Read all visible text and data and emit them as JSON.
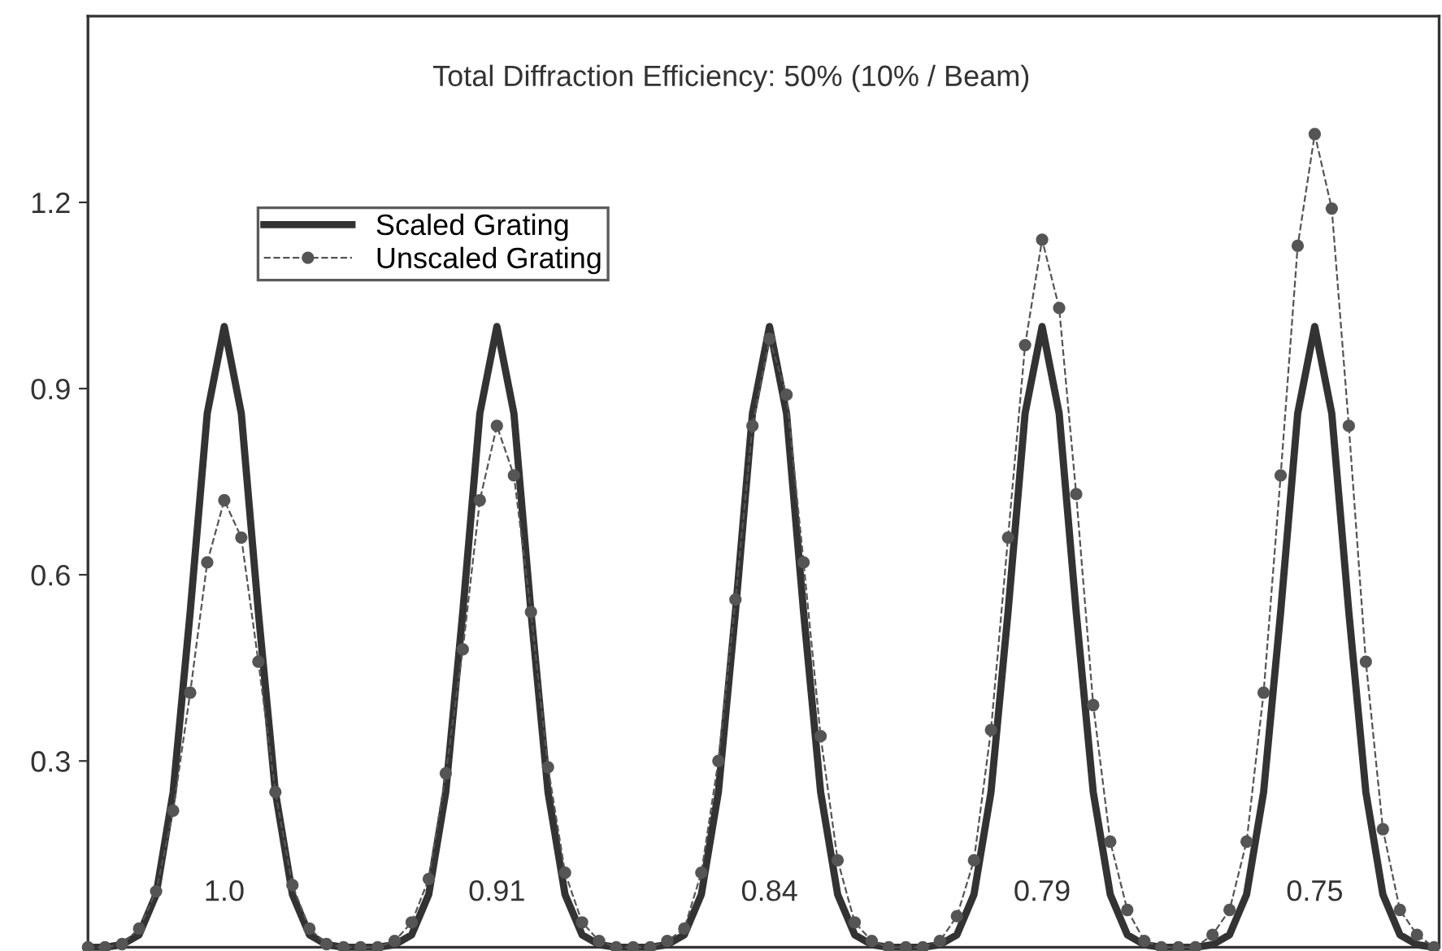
{
  "chart_data": {
    "type": "line",
    "title": "Total Diffraction Efficiency: 50% (10% / Beam)",
    "categories": [
      null,
      null,
      null,
      null,
      null,
      null,
      null,
      null,
      null,
      null,
      null,
      null,
      null,
      null,
      null,
      null,
      null,
      null,
      null,
      null,
      null,
      null,
      null,
      null,
      null,
      null,
      null,
      null,
      null,
      null,
      null,
      null,
      null,
      null,
      null,
      null,
      null,
      null,
      null,
      null,
      null,
      null,
      null,
      null,
      null,
      null,
      null,
      null,
      null,
      null,
      null,
      null,
      null,
      null,
      null,
      null,
      null,
      null,
      null,
      null,
      null,
      null,
      null,
      null,
      null,
      null,
      null,
      null,
      null,
      null,
      null,
      null,
      null,
      null,
      null,
      null,
      null,
      null,
      null,
      null
    ],
    "series": [
      {
        "name": "Scaled Grating",
        "color": "#333333",
        "marker": "none",
        "line_style": "solid",
        "values": [
          0,
          0,
          0.004,
          0.02,
          0.085,
          0.25,
          0.54,
          0.86,
          1.0,
          0.86,
          0.54,
          0.25,
          0.085,
          0.02,
          0.004,
          0,
          0,
          0,
          0.004,
          0.02,
          0.085,
          0.25,
          0.54,
          0.86,
          1.0,
          0.86,
          0.54,
          0.25,
          0.085,
          0.02,
          0.004,
          0,
          0,
          0,
          0.004,
          0.02,
          0.085,
          0.25,
          0.54,
          0.86,
          1.0,
          0.86,
          0.54,
          0.25,
          0.085,
          0.02,
          0.004,
          0,
          0,
          0,
          0.004,
          0.02,
          0.085,
          0.25,
          0.54,
          0.86,
          1.0,
          0.86,
          0.54,
          0.25,
          0.085,
          0.02,
          0.004,
          0,
          0,
          0,
          0.004,
          0.02,
          0.085,
          0.25,
          0.54,
          0.86,
          1.0,
          0.86,
          0.54,
          0.25,
          0.085,
          0.02,
          0.004,
          0
        ]
      },
      {
        "name": "Unscaled Grating",
        "color": "#555555",
        "marker": "circle",
        "line_style": "dashed",
        "values": [
          0,
          0,
          0.005,
          0.03,
          0.09,
          0.22,
          0.41,
          0.62,
          0.72,
          0.66,
          0.46,
          0.25,
          0.1,
          0.03,
          0.005,
          0,
          0,
          0,
          0.01,
          0.04,
          0.11,
          0.28,
          0.48,
          0.72,
          0.84,
          0.76,
          0.54,
          0.29,
          0.12,
          0.04,
          0.01,
          0,
          0,
          0,
          0.01,
          0.03,
          0.12,
          0.3,
          0.56,
          0.84,
          0.98,
          0.89,
          0.62,
          0.34,
          0.14,
          0.04,
          0.01,
          0,
          0,
          0,
          0.01,
          0.05,
          0.14,
          0.35,
          0.66,
          0.97,
          1.14,
          1.03,
          0.73,
          0.39,
          0.17,
          0.06,
          0.01,
          0,
          0,
          0,
          0.02,
          0.06,
          0.17,
          0.41,
          0.76,
          1.13,
          1.31,
          1.19,
          0.84,
          0.46,
          0.19,
          0.06,
          0.02,
          0
        ]
      }
    ],
    "annotations": [
      "1.0",
      "0.91",
      "0.84",
      "0.79",
      "0.75"
    ],
    "ylim": [
      0,
      1.5
    ],
    "yticks": [
      0.3,
      0.6,
      0.9,
      1.2
    ],
    "tick_labels": "y",
    "grid": false,
    "legend": "top left"
  }
}
